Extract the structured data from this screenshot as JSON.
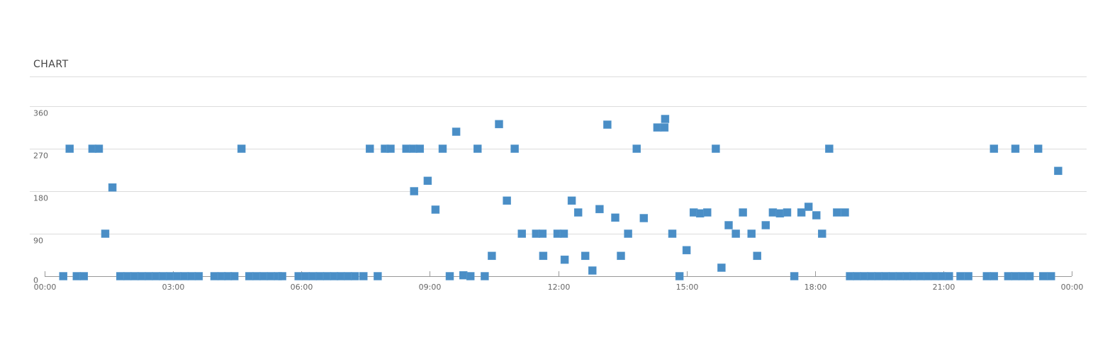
{
  "chart_data": {
    "type": "scatter",
    "title": "CHART",
    "xlabel": "",
    "ylabel": "",
    "xlim": [
      "00:00",
      "24:00"
    ],
    "ylim": [
      0,
      360
    ],
    "x_ticks": [
      "00:00",
      "03:00",
      "06:00",
      "09:00",
      "12:00",
      "15:00",
      "18:00",
      "21:00",
      "00:00"
    ],
    "y_ticks": [
      "0",
      "90",
      "180",
      "270",
      "360"
    ],
    "y_tick_values": [
      0,
      90,
      180,
      270,
      360
    ],
    "grid": true,
    "legend": "none",
    "marker": "square",
    "color": "#4a8ec6",
    "points": [
      [
        "00:26",
        0
      ],
      [
        "00:35",
        270
      ],
      [
        "00:45",
        0
      ],
      [
        "00:55",
        0
      ],
      [
        "01:07",
        270
      ],
      [
        "01:16",
        270
      ],
      [
        "01:25",
        90
      ],
      [
        "01:35",
        188
      ],
      [
        "01:46",
        0
      ],
      [
        "01:56",
        0
      ],
      [
        "02:06",
        0
      ],
      [
        "02:16",
        0
      ],
      [
        "02:26",
        0
      ],
      [
        "02:36",
        0
      ],
      [
        "02:46",
        0
      ],
      [
        "02:56",
        0
      ],
      [
        "03:06",
        0
      ],
      [
        "03:16",
        0
      ],
      [
        "03:26",
        0
      ],
      [
        "03:36",
        0
      ],
      [
        "03:58",
        0
      ],
      [
        "04:08",
        0
      ],
      [
        "04:17",
        0
      ],
      [
        "04:26",
        0
      ],
      [
        "04:36",
        270
      ],
      [
        "04:47",
        0
      ],
      [
        "04:57",
        0
      ],
      [
        "05:07",
        0
      ],
      [
        "05:17",
        0
      ],
      [
        "05:27",
        0
      ],
      [
        "05:33",
        0
      ],
      [
        "05:56",
        0
      ],
      [
        "06:06",
        0
      ],
      [
        "06:16",
        0
      ],
      [
        "06:26",
        0
      ],
      [
        "06:36",
        0
      ],
      [
        "06:46",
        0
      ],
      [
        "06:55",
        0
      ],
      [
        "07:05",
        0
      ],
      [
        "07:15",
        0
      ],
      [
        "07:27",
        0
      ],
      [
        "07:36",
        270
      ],
      [
        "07:47",
        0
      ],
      [
        "07:57",
        270
      ],
      [
        "08:05",
        270
      ],
      [
        "08:27",
        270
      ],
      [
        "08:37",
        270
      ],
      [
        "08:38",
        180
      ],
      [
        "08:46",
        270
      ],
      [
        "08:57",
        202
      ],
      [
        "09:08",
        141
      ],
      [
        "09:18",
        270
      ],
      [
        "09:28",
        0
      ],
      [
        "09:37",
        306
      ],
      [
        "09:47",
        2
      ],
      [
        "09:57",
        0
      ],
      [
        "10:07",
        270
      ],
      [
        "10:17",
        0
      ],
      [
        "10:27",
        43
      ],
      [
        "10:37",
        322
      ],
      [
        "10:48",
        160
      ],
      [
        "10:59",
        270
      ],
      [
        "11:09",
        90
      ],
      [
        "11:29",
        90
      ],
      [
        "11:38",
        90
      ],
      [
        "11:39",
        43
      ],
      [
        "11:59",
        90
      ],
      [
        "12:08",
        90
      ],
      [
        "12:09",
        35
      ],
      [
        "12:19",
        160
      ],
      [
        "12:28",
        135
      ],
      [
        "12:38",
        43
      ],
      [
        "12:48",
        12
      ],
      [
        "12:58",
        142
      ],
      [
        "13:09",
        321
      ],
      [
        "13:20",
        124
      ],
      [
        "13:28",
        43
      ],
      [
        "13:38",
        90
      ],
      [
        "13:50",
        270
      ],
      [
        "14:00",
        123
      ],
      [
        "14:19",
        315
      ],
      [
        "14:29",
        315
      ],
      [
        "14:30",
        333
      ],
      [
        "14:40",
        90
      ],
      [
        "14:50",
        0
      ],
      [
        "15:00",
        55
      ],
      [
        "15:10",
        135
      ],
      [
        "15:19",
        133
      ],
      [
        "15:29",
        135
      ],
      [
        "15:41",
        270
      ],
      [
        "15:49",
        18
      ],
      [
        "15:59",
        108
      ],
      [
        "16:09",
        90
      ],
      [
        "16:19",
        135
      ],
      [
        "16:31",
        90
      ],
      [
        "16:39",
        43
      ],
      [
        "16:51",
        108
      ],
      [
        "17:01",
        135
      ],
      [
        "17:11",
        133
      ],
      [
        "17:21",
        135
      ],
      [
        "17:31",
        0
      ],
      [
        "17:41",
        135
      ],
      [
        "17:51",
        147
      ],
      [
        "18:02",
        129
      ],
      [
        "18:10",
        90
      ],
      [
        "18:20",
        270
      ],
      [
        "18:31",
        135
      ],
      [
        "18:42",
        135
      ],
      [
        "18:49",
        0
      ],
      [
        "18:59",
        0
      ],
      [
        "19:09",
        0
      ],
      [
        "19:19",
        0
      ],
      [
        "19:29",
        0
      ],
      [
        "19:39",
        0
      ],
      [
        "19:49",
        0
      ],
      [
        "19:59",
        0
      ],
      [
        "20:09",
        0
      ],
      [
        "20:18",
        0
      ],
      [
        "20:28",
        0
      ],
      [
        "20:38",
        0
      ],
      [
        "20:48",
        0
      ],
      [
        "20:58",
        0
      ],
      [
        "21:08",
        0
      ],
      [
        "21:24",
        0
      ],
      [
        "21:35",
        0
      ],
      [
        "22:01",
        0
      ],
      [
        "22:11",
        0
      ],
      [
        "22:11",
        270
      ],
      [
        "22:31",
        0
      ],
      [
        "22:41",
        0
      ],
      [
        "22:41",
        270
      ],
      [
        "22:51",
        0
      ],
      [
        "23:01",
        0
      ],
      [
        "23:13",
        270
      ],
      [
        "23:20",
        0
      ],
      [
        "23:31",
        0
      ],
      [
        "23:41",
        223
      ]
    ]
  }
}
